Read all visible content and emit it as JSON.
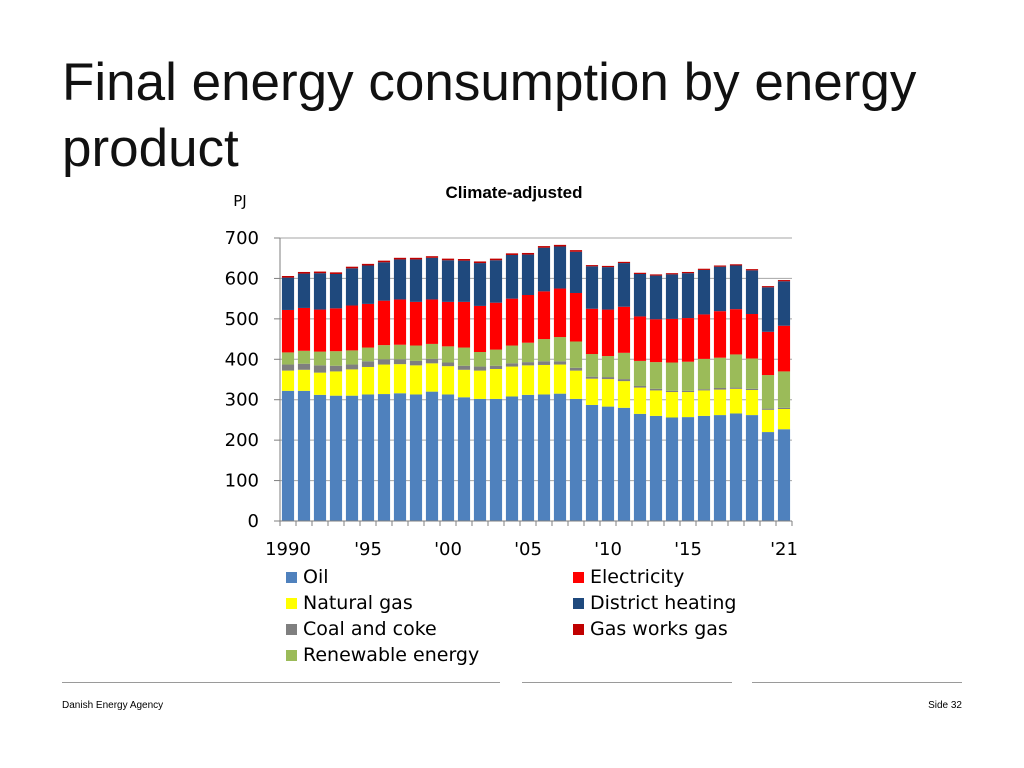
{
  "slide": {
    "title": "Final energy consumption by energy product",
    "footer_left": "Danish Energy Agency",
    "footer_right": "Side 32"
  },
  "chart_data": {
    "type": "bar",
    "stacked": true,
    "title": "Climate-adjusted",
    "ylabel": "PJ",
    "xlabel": "",
    "ylim": [
      0,
      700
    ],
    "yticks": [
      "0",
      "100",
      "200",
      "300",
      "400",
      "500",
      "600",
      "700"
    ],
    "categories": [
      "1990",
      "1991",
      "1992",
      "1993",
      "1994",
      "1995",
      "1996",
      "1997",
      "1998",
      "1999",
      "2000",
      "2001",
      "2002",
      "2003",
      "2004",
      "2005",
      "2006",
      "2007",
      "2008",
      "2009",
      "2010",
      "2011",
      "2012",
      "2013",
      "2014",
      "2015",
      "2016",
      "2017",
      "2018",
      "2019",
      "2020",
      "2021"
    ],
    "xtick_labels": [
      {
        "index": 0,
        "label": "1990"
      },
      {
        "index": 5,
        "label": "'95"
      },
      {
        "index": 10,
        "label": "'00"
      },
      {
        "index": 15,
        "label": "'05"
      },
      {
        "index": 20,
        "label": "'10"
      },
      {
        "index": 25,
        "label": "'15"
      },
      {
        "index": 31,
        "label": "'21"
      }
    ],
    "legend_position": "bottom",
    "series": [
      {
        "name": "Oil",
        "color": "#4f81bd",
        "values": [
          322,
          322,
          312,
          310,
          310,
          313,
          314,
          316,
          313,
          320,
          313,
          306,
          302,
          302,
          308,
          312,
          313,
          315,
          302,
          287,
          283,
          280,
          265,
          260,
          256,
          257,
          260,
          262,
          266,
          262,
          220,
          227
        ]
      },
      {
        "name": "Natural gas",
        "color": "#ffff00",
        "values": [
          50,
          52,
          55,
          60,
          65,
          68,
          73,
          72,
          72,
          70,
          70,
          68,
          70,
          74,
          74,
          73,
          73,
          72,
          70,
          65,
          68,
          66,
          65,
          63,
          63,
          62,
          63,
          63,
          61,
          62,
          55,
          50
        ]
      },
      {
        "name": "Coal and coke",
        "color": "#7f7f7f",
        "values": [
          15,
          15,
          18,
          14,
          12,
          14,
          13,
          12,
          11,
          11,
          9,
          10,
          10,
          8,
          8,
          8,
          9,
          8,
          7,
          5,
          5,
          5,
          4,
          4,
          3,
          3,
          3,
          4,
          3,
          3,
          3,
          3
        ]
      },
      {
        "name": "Renewable energy",
        "color": "#9bbb59",
        "values": [
          30,
          32,
          34,
          36,
          35,
          34,
          35,
          36,
          38,
          37,
          40,
          45,
          36,
          40,
          44,
          48,
          55,
          60,
          65,
          56,
          52,
          65,
          62,
          66,
          70,
          72,
          75,
          75,
          82,
          75,
          83,
          90
        ]
      },
      {
        "name": "Electricity",
        "color": "#ff0000",
        "values": [
          105,
          106,
          104,
          106,
          111,
          108,
          110,
          112,
          108,
          110,
          110,
          113,
          114,
          116,
          116,
          118,
          118,
          120,
          120,
          112,
          115,
          114,
          110,
          106,
          108,
          108,
          110,
          115,
          112,
          110,
          107,
          113
        ]
      },
      {
        "name": "District heating",
        "color": "#1f497d",
        "values": [
          80,
          85,
          90,
          85,
          92,
          95,
          95,
          99,
          105,
          103,
          103,
          102,
          106,
          105,
          108,
          100,
          108,
          104,
          102,
          105,
          105,
          108,
          105,
          108,
          110,
          111,
          110,
          110,
          108,
          108,
          110,
          110
        ]
      },
      {
        "name": "Gas works gas",
        "color": "#c00000",
        "values": [
          4,
          4,
          4,
          4,
          4,
          4,
          4,
          4,
          4,
          4,
          4,
          4,
          4,
          4,
          4,
          4,
          4,
          4,
          4,
          3,
          3,
          3,
          3,
          3,
          3,
          3,
          3,
          3,
          3,
          3,
          3,
          3
        ]
      }
    ]
  }
}
